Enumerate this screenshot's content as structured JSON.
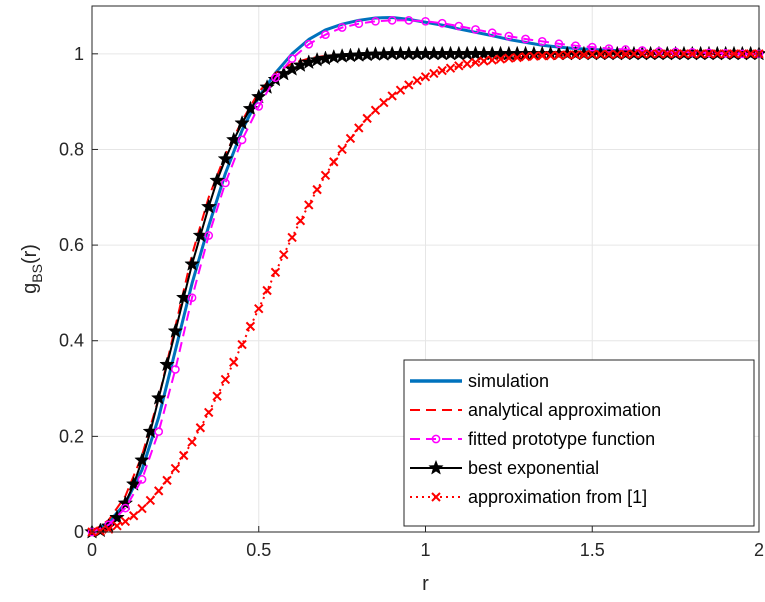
{
  "chart_data": {
    "type": "line",
    "xlabel": "r",
    "ylabel_main": "g",
    "ylabel_sub": "BS",
    "ylabel_tail": "(r)",
    "xlim": [
      0,
      2
    ],
    "ylim": [
      0,
      1.1
    ],
    "xticks": [
      0,
      0.5,
      1,
      1.5,
      2
    ],
    "xtick_labels": [
      "0",
      "0.5",
      "1",
      "1.5",
      "2"
    ],
    "yticks": [
      0,
      0.2,
      0.4,
      0.6,
      0.8,
      1
    ],
    "ytick_labels": [
      "0",
      "0.2",
      "0.4",
      "0.6",
      "0.8",
      "1"
    ],
    "grid": true,
    "legend_position": "bottom-right",
    "series": [
      {
        "name": "simulation",
        "color": "#0072BD",
        "style": "solid",
        "marker": "none",
        "x": [
          0,
          0.05,
          0.1,
          0.15,
          0.2,
          0.25,
          0.3,
          0.35,
          0.4,
          0.45,
          0.5,
          0.55,
          0.6,
          0.65,
          0.7,
          0.75,
          0.8,
          0.85,
          0.9,
          0.95,
          1.0,
          1.05,
          1.1,
          1.15,
          1.2,
          1.25,
          1.3,
          1.35,
          1.4,
          1.45,
          1.5,
          1.6,
          1.7,
          1.8,
          1.9,
          2.0
        ],
        "y": [
          0.0,
          0.02,
          0.06,
          0.13,
          0.24,
          0.38,
          0.52,
          0.64,
          0.75,
          0.84,
          0.91,
          0.96,
          1.0,
          1.03,
          1.05,
          1.062,
          1.07,
          1.075,
          1.076,
          1.072,
          1.066,
          1.06,
          1.052,
          1.045,
          1.038,
          1.03,
          1.024,
          1.018,
          1.014,
          1.011,
          1.009,
          1.006,
          1.004,
          1.002,
          1.001,
          1.0
        ]
      },
      {
        "name": "analytical approximation",
        "color": "#FF0000",
        "style": "dashed",
        "marker": "none",
        "x": [
          0,
          0.05,
          0.1,
          0.15,
          0.2,
          0.25,
          0.3,
          0.35,
          0.4,
          0.45,
          0.5,
          0.55,
          0.6,
          0.65,
          0.7,
          0.8,
          0.9,
          1.0,
          1.2,
          1.4,
          1.6,
          1.8,
          2.0
        ],
        "y": [
          0.0,
          0.025,
          0.075,
          0.16,
          0.28,
          0.43,
          0.58,
          0.7,
          0.79,
          0.86,
          0.92,
          0.96,
          0.98,
          0.99,
          0.996,
          1.0,
          1.0,
          1.0,
          1.0,
          1.0,
          1.0,
          1.0,
          1.0
        ]
      },
      {
        "name": "fitted prototype function",
        "color": "#FF00FF",
        "style": "dashed",
        "marker": "circle",
        "x": [
          0,
          0.05,
          0.1,
          0.15,
          0.2,
          0.25,
          0.3,
          0.35,
          0.4,
          0.45,
          0.5,
          0.55,
          0.6,
          0.65,
          0.7,
          0.75,
          0.8,
          0.85,
          0.9,
          0.95,
          1.0,
          1.05,
          1.1,
          1.15,
          1.2,
          1.25,
          1.3,
          1.35,
          1.4,
          1.45,
          1.5,
          1.55,
          1.6,
          1.65,
          1.7,
          1.75,
          1.8,
          1.85,
          1.9,
          1.95,
          2.0
        ],
        "y": [
          0.0,
          0.015,
          0.05,
          0.11,
          0.21,
          0.34,
          0.49,
          0.62,
          0.73,
          0.82,
          0.89,
          0.95,
          0.99,
          1.02,
          1.04,
          1.055,
          1.063,
          1.068,
          1.07,
          1.07,
          1.068,
          1.064,
          1.058,
          1.051,
          1.044,
          1.037,
          1.031,
          1.026,
          1.021,
          1.017,
          1.014,
          1.011,
          1.009,
          1.007,
          1.005,
          1.004,
          1.003,
          1.002,
          1.001,
          1.0,
          1.0
        ]
      },
      {
        "name": "best exponential",
        "color": "#000000",
        "style": "solid",
        "marker": "star",
        "x": [
          0,
          0.025,
          0.05,
          0.075,
          0.1,
          0.125,
          0.15,
          0.175,
          0.2,
          0.225,
          0.25,
          0.275,
          0.3,
          0.325,
          0.35,
          0.375,
          0.4,
          0.425,
          0.45,
          0.475,
          0.5,
          0.525,
          0.55,
          0.575,
          0.6,
          0.625,
          0.65,
          0.675,
          0.7,
          0.725,
          0.75,
          0.775,
          0.8,
          0.825,
          0.85,
          0.875,
          0.9,
          0.925,
          0.95,
          0.975,
          1.0,
          1.025,
          1.05,
          1.075,
          1.1,
          1.125,
          1.15,
          1.175,
          1.2,
          1.225,
          1.25,
          1.275,
          1.3,
          1.325,
          1.35,
          1.375,
          1.4,
          1.425,
          1.45,
          1.475,
          1.5,
          1.525,
          1.55,
          1.575,
          1.6,
          1.625,
          1.65,
          1.675,
          1.7,
          1.725,
          1.75,
          1.775,
          1.8,
          1.825,
          1.85,
          1.875,
          1.9,
          1.925,
          1.95,
          1.975,
          2.0
        ],
        "y": [
          0.0,
          0.003,
          0.012,
          0.03,
          0.06,
          0.1,
          0.15,
          0.21,
          0.28,
          0.35,
          0.42,
          0.49,
          0.56,
          0.62,
          0.68,
          0.735,
          0.78,
          0.82,
          0.855,
          0.885,
          0.91,
          0.93,
          0.946,
          0.958,
          0.968,
          0.976,
          0.982,
          0.987,
          0.99,
          0.993,
          0.995,
          0.996,
          0.997,
          0.998,
          0.999,
          0.999,
          1.0,
          1.0,
          1.0,
          1.0,
          1.0,
          1.0,
          1.0,
          1.0,
          1.0,
          1.0,
          1.0,
          1.0,
          1.0,
          1.0,
          1.0,
          1.0,
          1.0,
          1.0,
          1.0,
          1.0,
          1.0,
          1.0,
          1.0,
          1.0,
          1.0,
          1.0,
          1.0,
          1.0,
          1.0,
          1.0,
          1.0,
          1.0,
          1.0,
          1.0,
          1.0,
          1.0,
          1.0,
          1.0,
          1.0,
          1.0,
          1.0,
          1.0,
          1.0,
          1.0,
          1.0
        ]
      },
      {
        "name": "approximation from [1]",
        "color": "#FF0000",
        "style": "dotted",
        "marker": "x",
        "x": [
          0,
          0.025,
          0.05,
          0.075,
          0.1,
          0.125,
          0.15,
          0.175,
          0.2,
          0.225,
          0.25,
          0.275,
          0.3,
          0.325,
          0.35,
          0.375,
          0.4,
          0.425,
          0.45,
          0.475,
          0.5,
          0.525,
          0.55,
          0.575,
          0.6,
          0.625,
          0.65,
          0.675,
          0.7,
          0.725,
          0.75,
          0.775,
          0.8,
          0.825,
          0.85,
          0.875,
          0.9,
          0.925,
          0.95,
          0.975,
          1.0,
          1.025,
          1.05,
          1.075,
          1.1,
          1.125,
          1.15,
          1.175,
          1.2,
          1.225,
          1.25,
          1.275,
          1.3,
          1.325,
          1.35,
          1.375,
          1.4,
          1.425,
          1.45,
          1.475,
          1.5,
          1.525,
          1.55,
          1.575,
          1.6,
          1.625,
          1.65,
          1.675,
          1.7,
          1.725,
          1.75,
          1.775,
          1.8,
          1.825,
          1.85,
          1.875,
          1.9,
          1.925,
          1.95,
          1.975,
          2.0
        ],
        "y": [
          0.0,
          0.002,
          0.006,
          0.013,
          0.022,
          0.034,
          0.049,
          0.066,
          0.086,
          0.108,
          0.133,
          0.16,
          0.188,
          0.218,
          0.25,
          0.284,
          0.319,
          0.355,
          0.392,
          0.43,
          0.467,
          0.505,
          0.543,
          0.58,
          0.616,
          0.651,
          0.684,
          0.716,
          0.746,
          0.774,
          0.8,
          0.823,
          0.845,
          0.865,
          0.882,
          0.898,
          0.912,
          0.924,
          0.935,
          0.944,
          0.952,
          0.959,
          0.965,
          0.97,
          0.975,
          0.979,
          0.982,
          0.985,
          0.987,
          0.989,
          0.991,
          0.992,
          0.994,
          0.995,
          0.996,
          0.996,
          0.997,
          0.998,
          0.998,
          0.998,
          0.999,
          0.999,
          0.999,
          0.999,
          0.999,
          1.0,
          1.0,
          1.0,
          1.0,
          1.0,
          1.0,
          1.0,
          1.0,
          1.0,
          1.0,
          1.0,
          1.0,
          1.0,
          1.0,
          1.0,
          1.0
        ]
      }
    ]
  }
}
